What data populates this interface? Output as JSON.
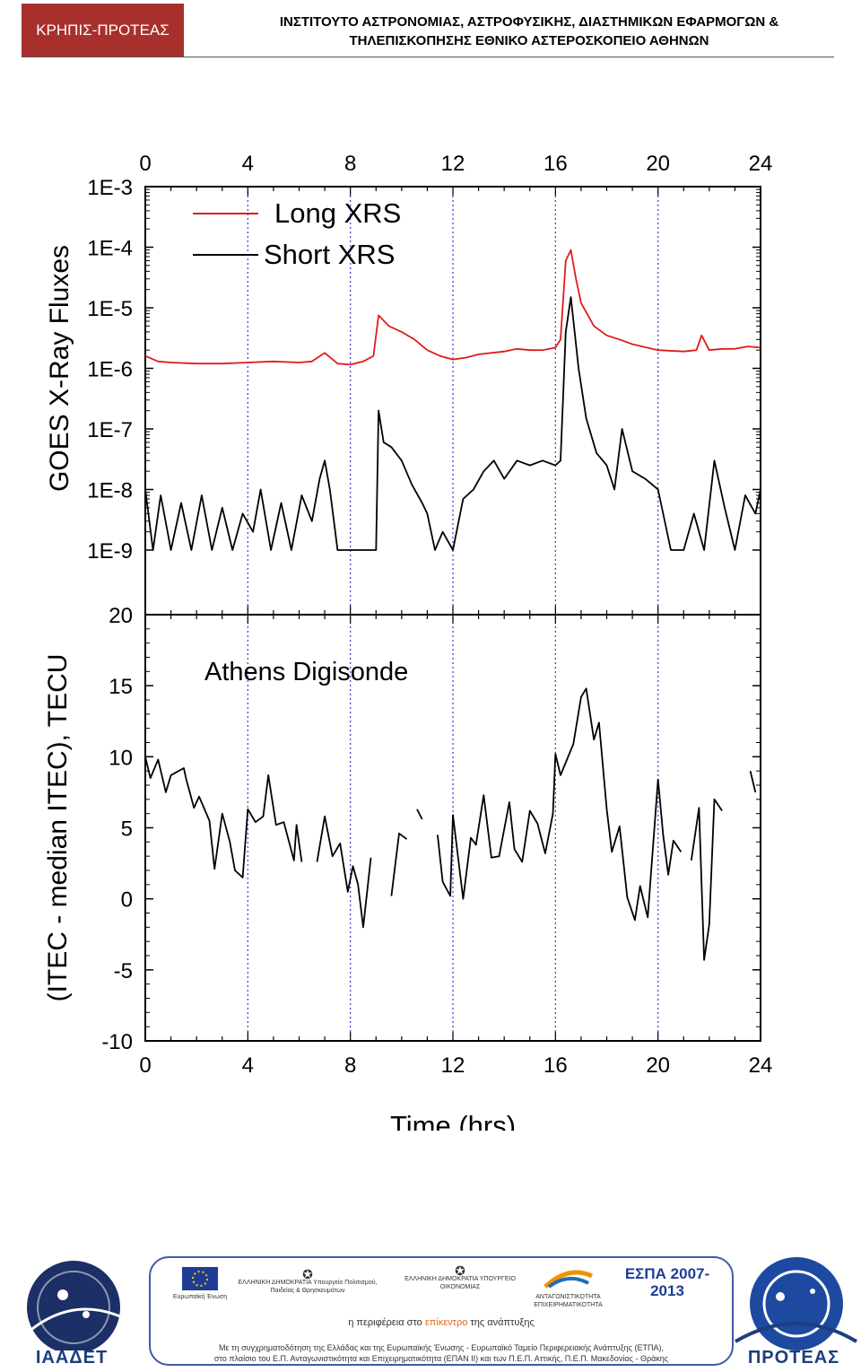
{
  "header": {
    "badge": "ΚΡΗΠΙΣ-ΠΡΟΤΕΑΣ",
    "title_line1": "ΙΝΣΤΙΤΟΥΤΟ ΑΣΤΡΟΝΟΜΙΑΣ, ΑΣΤΡΟΦΥΣΙΚΗΣ, ΔΙΑΣΤΗΜΙΚΩΝ ΕΦΑΡΜΟΓΩΝ &",
    "title_line2": "ΤΗΛΕΠΙΣΚΟΠΗΣΗΣ ΕΘΝΙΚΟ ΑΣΤΕΡΟΣΚΟΠΕΙΟ ΑΘΗΝΩΝ"
  },
  "chart_data": [
    {
      "type": "line",
      "ylabel": "GOES X-Ray Fluxes",
      "yscale": "log",
      "ylim": [
        1e-09,
        0.001
      ],
      "ytick_labels": [
        "1E-9",
        "1E-8",
        "1E-7",
        "1E-6",
        "1E-5",
        "1E-4",
        "1E-3"
      ],
      "xlim": [
        0,
        24
      ],
      "xticks": [
        0,
        4,
        8,
        12,
        16,
        20,
        24
      ],
      "xtick_labels": [
        "0",
        "4",
        "8",
        "12",
        "16",
        "20",
        "24"
      ],
      "vertical_reference_lines": [
        4,
        8,
        12,
        16,
        20
      ],
      "legend_position": "top-left",
      "series": [
        {
          "name": "Long XRS",
          "color": "#e01b1b",
          "points": [
            [
              0,
              1.6e-06
            ],
            [
              0.5,
              1.3e-06
            ],
            [
              1,
              1.25e-06
            ],
            [
              2,
              1.2e-06
            ],
            [
              3,
              1.2e-06
            ],
            [
              4,
              1.25e-06
            ],
            [
              5,
              1.3e-06
            ],
            [
              6,
              1.25e-06
            ],
            [
              6.5,
              1.3e-06
            ],
            [
              7,
              1.8e-06
            ],
            [
              7.5,
              1.2e-06
            ],
            [
              8,
              1.15e-06
            ],
            [
              8.5,
              1.3e-06
            ],
            [
              8.9,
              1.6e-06
            ],
            [
              9.1,
              7.5e-06
            ],
            [
              9.5,
              5e-06
            ],
            [
              10,
              4e-06
            ],
            [
              10.5,
              3e-06
            ],
            [
              11,
              2e-06
            ],
            [
              11.5,
              1.6e-06
            ],
            [
              12,
              1.4e-06
            ],
            [
              12.5,
              1.5e-06
            ],
            [
              13,
              1.7e-06
            ],
            [
              14,
              1.9e-06
            ],
            [
              14.5,
              2.1e-06
            ],
            [
              15,
              2e-06
            ],
            [
              15.5,
              2e-06
            ],
            [
              16,
              2.2e-06
            ],
            [
              16.2,
              3e-06
            ],
            [
              16.4,
              6e-05
            ],
            [
              16.6,
              9e-05
            ],
            [
              16.8,
              3e-05
            ],
            [
              17,
              1.2e-05
            ],
            [
              17.5,
              5e-06
            ],
            [
              18,
              3.5e-06
            ],
            [
              18.5,
              3e-06
            ],
            [
              19,
              2.5e-06
            ],
            [
              20,
              2e-06
            ],
            [
              21,
              1.9e-06
            ],
            [
              21.5,
              2e-06
            ],
            [
              21.7,
              3.5e-06
            ],
            [
              22,
              2e-06
            ],
            [
              22.5,
              2.1e-06
            ],
            [
              23,
              2.1e-06
            ],
            [
              23.5,
              2.3e-06
            ],
            [
              24,
              2.2e-06
            ]
          ]
        },
        {
          "name": "Short XRS",
          "color": "#000000",
          "points": [
            [
              0,
              1e-08
            ],
            [
              0.3,
              1e-09
            ],
            [
              0.6,
              8e-09
            ],
            [
              1,
              1e-09
            ],
            [
              1.4,
              6e-09
            ],
            [
              1.8,
              1e-09
            ],
            [
              2.2,
              8e-09
            ],
            [
              2.6,
              1e-09
            ],
            [
              3,
              5e-09
            ],
            [
              3.4,
              1e-09
            ],
            [
              3.8,
              4e-09
            ],
            [
              4.2,
              2e-09
            ],
            [
              4.5,
              1e-08
            ],
            [
              4.9,
              1e-09
            ],
            [
              5.3,
              6e-09
            ],
            [
              5.7,
              1e-09
            ],
            [
              6.1,
              8e-09
            ],
            [
              6.5,
              3e-09
            ],
            [
              6.8,
              1.5e-08
            ],
            [
              7,
              3e-08
            ],
            [
              7.2,
              1e-08
            ],
            [
              7.5,
              1e-09
            ],
            [
              8,
              1e-09
            ],
            [
              8.5,
              1e-09
            ],
            [
              9,
              1e-09
            ],
            [
              9.1,
              2e-07
            ],
            [
              9.3,
              6e-08
            ],
            [
              9.6,
              5e-08
            ],
            [
              10,
              3e-08
            ],
            [
              10.4,
              1.2e-08
            ],
            [
              10.8,
              6e-09
            ],
            [
              11,
              4e-09
            ],
            [
              11.3,
              1e-09
            ],
            [
              11.6,
              2e-09
            ],
            [
              12,
              1e-09
            ],
            [
              12.4,
              7e-09
            ],
            [
              12.8,
              1e-08
            ],
            [
              13.2,
              2e-08
            ],
            [
              13.6,
              3e-08
            ],
            [
              14,
              1.5e-08
            ],
            [
              14.5,
              3e-08
            ],
            [
              15,
              2.5e-08
            ],
            [
              15.5,
              3e-08
            ],
            [
              16,
              2.5e-08
            ],
            [
              16.2,
              3e-08
            ],
            [
              16.4,
              4e-06
            ],
            [
              16.6,
              1.5e-05
            ],
            [
              16.9,
              1e-06
            ],
            [
              17.2,
              1.5e-07
            ],
            [
              17.6,
              4e-08
            ],
            [
              18,
              2.5e-08
            ],
            [
              18.3,
              1e-08
            ],
            [
              18.6,
              1e-07
            ],
            [
              19,
              2e-08
            ],
            [
              19.5,
              1.5e-08
            ],
            [
              20,
              1e-08
            ],
            [
              20.5,
              1e-09
            ],
            [
              21,
              1e-09
            ],
            [
              21.4,
              4e-09
            ],
            [
              21.8,
              1e-09
            ],
            [
              22.2,
              3e-08
            ],
            [
              22.6,
              5e-09
            ],
            [
              23,
              1e-09
            ],
            [
              23.4,
              8e-09
            ],
            [
              23.8,
              4e-09
            ],
            [
              24,
              1e-08
            ]
          ]
        }
      ]
    },
    {
      "type": "line",
      "ylabel": "(ITEC - median ITEC), TECU",
      "xlabel": "Time (hrs)",
      "annotation": "Athens Digisonde",
      "ylim": [
        -10,
        20
      ],
      "yticks": [
        -10,
        -5,
        0,
        5,
        10,
        15,
        20
      ],
      "xlim": [
        0,
        24
      ],
      "xticks": [
        0,
        4,
        8,
        12,
        16,
        20,
        24
      ],
      "xtick_labels": [
        "0",
        "4",
        "8",
        "12",
        "16",
        "20",
        "24"
      ],
      "vertical_reference_lines": [
        4,
        8,
        12,
        16,
        20
      ],
      "segments": [
        [
          [
            0,
            10
          ],
          [
            0.2,
            8.5
          ],
          [
            0.5,
            9.8
          ],
          [
            0.8,
            7.5
          ],
          [
            1,
            8.7
          ],
          [
            1.5,
            9.2
          ],
          [
            1.6,
            8.4
          ],
          [
            1.9,
            6.4
          ],
          [
            2.1,
            7.2
          ],
          [
            2.5,
            5.5
          ],
          [
            2.7,
            2.1
          ],
          [
            3,
            6
          ],
          [
            3.3,
            4
          ],
          [
            3.5,
            2
          ],
          [
            3.8,
            1.5
          ],
          [
            4,
            6.3
          ],
          [
            4.3,
            5.4
          ],
          [
            4.6,
            5.8
          ],
          [
            4.8,
            8.7
          ],
          [
            5.1,
            5.2
          ],
          [
            5.4,
            5.4
          ],
          [
            5.8,
            2.7
          ],
          [
            5.9,
            5.2
          ],
          [
            6.1,
            2.6
          ]
        ],
        [
          [
            6.7,
            2.6
          ],
          [
            7,
            5.8
          ],
          [
            7.3,
            3
          ],
          [
            7.6,
            3.9
          ],
          [
            7.9,
            0.5
          ],
          [
            8.1,
            2.3
          ],
          [
            8.3,
            1
          ],
          [
            8.5,
            -2
          ],
          [
            8.8,
            2.9
          ]
        ],
        [
          [
            9.6,
            0.2
          ],
          [
            9.9,
            4.6
          ],
          [
            10.2,
            4.2
          ]
        ],
        [
          [
            10.6,
            6.3
          ],
          [
            10.8,
            5.6
          ]
        ],
        [
          [
            11.4,
            4.5
          ],
          [
            11.6,
            1.2
          ],
          [
            11.9,
            0.2
          ],
          [
            12,
            5.9
          ],
          [
            12.4,
            0
          ],
          [
            12.7,
            4.3
          ],
          [
            12.9,
            3.8
          ],
          [
            13.2,
            7.3
          ],
          [
            13.5,
            2.9
          ],
          [
            13.8,
            3
          ],
          [
            14.2,
            6.8
          ],
          [
            14.4,
            3.5
          ],
          [
            14.7,
            2.6
          ],
          [
            15,
            6.2
          ],
          [
            15.3,
            5.3
          ],
          [
            15.6,
            3.2
          ],
          [
            15.9,
            6
          ],
          [
            16,
            10.2
          ],
          [
            16.2,
            8.7
          ],
          [
            16.7,
            10.9
          ],
          [
            17,
            14.2
          ],
          [
            17.2,
            14.8
          ],
          [
            17.5,
            11.2
          ],
          [
            17.7,
            12.4
          ],
          [
            18,
            6.3
          ],
          [
            18.2,
            3.3
          ],
          [
            18.5,
            5.1
          ],
          [
            18.8,
            0.1
          ],
          [
            19.1,
            -1.5
          ],
          [
            19.3,
            0.9
          ],
          [
            19.6,
            -1.3
          ],
          [
            20,
            8.4
          ],
          [
            20.2,
            4.5
          ],
          [
            20.4,
            1.7
          ],
          [
            20.6,
            4.1
          ],
          [
            20.9,
            3.3
          ]
        ],
        [
          [
            21.3,
            2.7
          ],
          [
            21.6,
            6.4
          ],
          [
            21.8,
            -4.3
          ],
          [
            22,
            -1.8
          ],
          [
            22.2,
            7
          ],
          [
            22.5,
            6.2
          ]
        ],
        [
          [
            23.6,
            9
          ],
          [
            23.8,
            7.5
          ]
        ]
      ]
    }
  ],
  "footer": {
    "left_logo": "ΙΑΑΔΕΤ",
    "right_logo": "ΠΡΟΤΕΑΣ",
    "logo_eu": "Ευρωπαϊκή Ένωση",
    "logo_ministry1": "ΕΛΛΗΝΙΚΗ ΔΗΜΟΚΡΑΤΙΑ Υπουργείο Πολιτισμού, Παιδείας & Θρησκευμάτων",
    "logo_ministry2": "ΕΛΛΗΝΙΚΗ ΔΗΜΟΚΡΑΤΙΑ ΥΠΟΥΡΓΕΙΟ ΟΙΚΟΝΟΜΙΑΣ",
    "logo_program": "ΑΝΤΑΓΩΝΙΣΤΙΚΟΤΗΤΑ ΕΠΙΧΕΙΡΗΜΑΤΙΚΟΤΗΤΑ",
    "logo_espa": "ΕΣΠΑ 2007-2013",
    "tagline_a": "η περιφέρεια στο ",
    "tagline_b": "επίκεντρο",
    "tagline_c": " της ανάπτυξης",
    "funding_line1": "Με τη συγχρηματοδότηση της Ελλάδας και της Ευρωπαϊκής Ένωσης - Ευρωπαϊκό Ταμείο Περιφερειακής Ανάπτυξης (ΕΤΠΑ),",
    "funding_line2": "στο πλαίσιο του Ε.Π. Ανταγωνιστικότητα και Επιχειρηματικότητα (ΕΠΑΝ ΙΙ) και των Π.Ε.Π. Αττικής, Π.Ε.Π. Μακεδονίας - Θράκης"
  }
}
